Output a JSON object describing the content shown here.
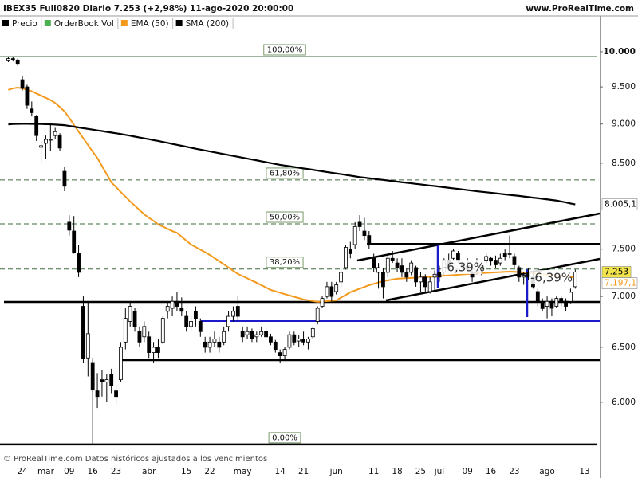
{
  "header": "IBEX35 Full0820 Diario 7.253 (+2,98%) 11-ago-2020 20:00:00",
  "source": "www.ProRealTime.com",
  "footer": "© ProRealTime.com  Datos históricos ajustados a los vencimientos",
  "annotations": [
    "-6,39%",
    "-6,39%"
  ],
  "chart_data": {
    "type": "candlestick",
    "log_scale": true,
    "price_name": "Precio",
    "price_color": "#000000",
    "volume_name": "OrderBook Vol",
    "volume_color": "#4caf50",
    "last_label": "7.253",
    "last_label_color": "#f2e44c",
    "ylim": [
      5563,
      10560
    ],
    "yticks": [
      {
        "value": 10000,
        "label": "10.000"
      },
      {
        "value": 9500,
        "label": "9.500"
      },
      {
        "value": 9000,
        "label": "9.000"
      },
      {
        "value": 8500,
        "label": "8.500"
      },
      {
        "value": 7500,
        "label": "7.500"
      },
      {
        "value": 7000,
        "label": "7.000"
      },
      {
        "value": 6500,
        "label": "6.500"
      },
      {
        "value": 6000,
        "label": "6.000"
      }
    ],
    "categories": [
      null,
      null,
      null,
      "24",
      null,
      null,
      null,
      null,
      "mar",
      null,
      null,
      null,
      null,
      "09",
      null,
      null,
      null,
      null,
      "16",
      null,
      null,
      null,
      null,
      "23",
      null,
      null,
      null,
      null,
      null,
      null,
      "abr",
      null,
      null,
      null,
      null,
      null,
      null,
      null,
      "15",
      null,
      null,
      null,
      null,
      "22",
      null,
      null,
      null,
      null,
      null,
      null,
      "may",
      null,
      null,
      null,
      null,
      null,
      null,
      null,
      "14",
      null,
      null,
      null,
      null,
      "21",
      null,
      null,
      null,
      null,
      null,
      null,
      "jun",
      null,
      null,
      null,
      null,
      null,
      null,
      null,
      "11",
      null,
      null,
      null,
      null,
      "18",
      null,
      null,
      null,
      null,
      "25",
      null,
      null,
      null,
      "jul",
      null,
      null,
      null,
      null,
      null,
      "09",
      null,
      null,
      null,
      null,
      "16",
      null,
      null,
      null,
      null,
      "23",
      null,
      null,
      null,
      null,
      null,
      null,
      "ago",
      null,
      null,
      null,
      null,
      null,
      null,
      null,
      "13"
    ],
    "open": [
      9880,
      9900,
      9880,
      9600,
      9500,
      9200,
      9100,
      8700,
      8750,
      8800,
      8850,
      8850,
      8400,
      7800,
      7700,
      7450,
      6900,
      6400,
      6350,
      6100,
      6200,
      6180,
      6250,
      6100,
      6200,
      6550,
      6750,
      6850,
      6650,
      6600,
      6600,
      6450,
      6500,
      6550,
      6850,
      6880,
      6950,
      6880,
      6800,
      6700,
      6850,
      6750,
      6550,
      6500,
      6550,
      6550,
      6550,
      6700,
      6800,
      6900,
      6650,
      6620,
      6650,
      6600,
      6620,
      6650,
      6600,
      6550,
      6450,
      6420,
      6500,
      6620,
      6560,
      6580,
      6550,
      6600,
      6750,
      6900,
      7000,
      7100,
      7050,
      7150,
      7300,
      7500,
      7550,
      7800,
      7700,
      7650,
      7400,
      7250,
      7250,
      7250,
      7400,
      7350,
      7320,
      7250,
      7250,
      7300,
      7150,
      7200,
      7050,
      7200,
      7250,
      7250,
      7380,
      7400,
      7450,
      7350,
      7320,
      7250,
      7250,
      7300,
      7380,
      7400,
      7380,
      7350,
      7450,
      7450,
      7420,
      7300,
      7200,
      7250,
      7200,
      7050,
      6950,
      6900,
      6950,
      6900,
      6980,
      6950,
      6950,
      7100,
      null,
      null
    ],
    "high": [
      9920,
      9930,
      9900,
      9650,
      9530,
      9300,
      9120,
      8780,
      8850,
      9000,
      8950,
      8880,
      8450,
      7880,
      7870,
      7550,
      7000,
      6950,
      6400,
      6260,
      6290,
      6250,
      6300,
      6150,
      6550,
      6880,
      6950,
      6880,
      6700,
      6750,
      6650,
      6550,
      6580,
      6800,
      6950,
      7000,
      7050,
      6990,
      6850,
      6800,
      6900,
      6780,
      6600,
      6600,
      6650,
      6600,
      6700,
      6850,
      6900,
      7000,
      6700,
      6700,
      6680,
      6650,
      6700,
      6700,
      6630,
      6570,
      6480,
      6500,
      6650,
      6650,
      6620,
      6650,
      6600,
      6700,
      6900,
      7000,
      7150,
      7150,
      7150,
      7300,
      7550,
      7580,
      7800,
      7880,
      7850,
      7700,
      7450,
      7350,
      7300,
      7450,
      7480,
      7400,
      7400,
      7300,
      7380,
      7320,
      7250,
      7230,
      7200,
      7270,
      7320,
      7400,
      7450,
      7500,
      7480,
      7380,
      7400,
      7300,
      7400,
      7350,
      7450,
      7420,
      7430,
      7450,
      7500,
      7650,
      7450,
      7320,
      7250,
      7300,
      7250,
      7080,
      6980,
      7000,
      6980,
      7000,
      7000,
      6980,
      7080,
      7280,
      null,
      null
    ],
    "low": [
      9850,
      9860,
      9800,
      9450,
      9200,
      9100,
      8780,
      8500,
      8550,
      8650,
      8800,
      8650,
      8160,
      7650,
      7450,
      7200,
      6350,
      6230,
      5640,
      5950,
      6050,
      6000,
      6080,
      5980,
      6180,
      6480,
      6700,
      6650,
      6500,
      6550,
      6400,
      6350,
      6400,
      6530,
      6780,
      6800,
      6850,
      6800,
      6650,
      6650,
      6700,
      6600,
      6450,
      6450,
      6500,
      6450,
      6520,
      6650,
      6750,
      6750,
      6550,
      6580,
      6550,
      6550,
      6600,
      6580,
      6520,
      6450,
      6350,
      6380,
      6480,
      6520,
      6500,
      6520,
      6480,
      6580,
      6720,
      6880,
      6980,
      6950,
      7020,
      7100,
      7280,
      7400,
      7500,
      7700,
      7600,
      7500,
      7250,
      7080,
      6980,
      7200,
      7350,
      7250,
      7200,
      7150,
      7220,
      7100,
      7050,
      7050,
      7030,
      7050,
      7150,
      7230,
      7300,
      7380,
      7350,
      7250,
      7250,
      7150,
      7230,
      7220,
      7350,
      7320,
      7300,
      7320,
      7380,
      7400,
      7300,
      7150,
      7120,
      7170,
      7080,
      6900,
      6850,
      6780,
      6800,
      6880,
      6900,
      6850,
      6930,
      7080,
      null,
      null
    ],
    "close": [
      9900,
      9890,
      9830,
      9480,
      9250,
      9150,
      8850,
      8720,
      8800,
      8800,
      8900,
      8690,
      8220,
      7710,
      7460,
      7250,
      6390,
      6630,
      6107,
      6050,
      6180,
      6200,
      6150,
      6050,
      6500,
      6780,
      6900,
      6700,
      6550,
      6700,
      6450,
      6500,
      6450,
      6780,
      6900,
      6950,
      6900,
      6850,
      6700,
      6750,
      6780,
      6650,
      6500,
      6550,
      6580,
      6500,
      6650,
      6800,
      6850,
      6800,
      6600,
      6650,
      6580,
      6620,
      6650,
      6600,
      6550,
      6480,
      6420,
      6480,
      6620,
      6550,
      6580,
      6550,
      6580,
      6680,
      6880,
      6980,
      7100,
      7000,
      7120,
      7250,
      7520,
      7450,
      7750,
      7750,
      7650,
      7550,
      7300,
      7300,
      7100,
      7400,
      7380,
      7300,
      7250,
      7200,
      7350,
      7150,
      7200,
      7100,
      7150,
      7230,
      7200,
      7380,
      7320,
      7480,
      7380,
      7300,
      7280,
      7200,
      7350,
      7320,
      7420,
      7370,
      7330,
      7400,
      7420,
      7450,
      7330,
      7200,
      7220,
      7200,
      7100,
      6950,
      6877,
      6950,
      6880,
      6980,
      6950,
      6900,
      7043,
      7253,
      null,
      null
    ],
    "series": [
      {
        "name": "EMA (50)",
        "color": "#f39a1e",
        "last_label": "7.197,1",
        "values": [
          9460,
          9480,
          9490,
          9480,
          9460,
          9440,
          9410,
          9380,
          9350,
          9320,
          9280,
          9225,
          9166,
          9080,
          8990,
          8900,
          8815,
          8730,
          8645,
          8565,
          8465,
          8365,
          8265,
          8210,
          8150,
          8095,
          8040,
          7990,
          7940,
          7890,
          7850,
          7815,
          7775,
          7750,
          7725,
          7700,
          7680,
          7637,
          7593,
          7550,
          7522,
          7494,
          7466,
          7437,
          7403,
          7369,
          7335,
          7301,
          7267,
          7233,
          7210,
          7187,
          7164,
          7141,
          7116,
          7092,
          7067,
          7053,
          7038,
          7024,
          7010,
          6997,
          6983,
          6970,
          6962,
          6953,
          6945,
          6949,
          6952,
          6956,
          6960,
          6988,
          7015,
          7043,
          7061,
          7080,
          7098,
          7116,
          7130,
          7144,
          7158,
          7166,
          7175,
          7183,
          7186,
          7189,
          7191,
          7194,
          7197,
          7200,
          7203,
          7207,
          7211,
          7214,
          7218,
          7221,
          7225,
          7229,
          7232,
          7236,
          7240,
          7242,
          7245,
          7247,
          7250,
          7252,
          7255,
          7257,
          7255,
          7252,
          7249,
          7245,
          7240,
          7235,
          7230,
          7224,
          7219,
          7214,
          7209,
          7204,
          7200,
          7197.1,
          null,
          null
        ]
      },
      {
        "name": "SMA (200)",
        "color": "#000000",
        "last_label": "8.005,1",
        "values": [
          8995,
          9000,
          9002,
          9003,
          9003,
          9002,
          9001,
          9000,
          8998,
          8996,
          8993,
          8989,
          8985,
          8975,
          8965,
          8955,
          8946,
          8936,
          8927,
          8917,
          8908,
          8898,
          8889,
          8879,
          8870,
          8859,
          8848,
          8836,
          8825,
          8814,
          8803,
          8791,
          8780,
          8768,
          8756,
          8743,
          8731,
          8719,
          8707,
          8694,
          8682,
          8670,
          8659,
          8648,
          8636,
          8625,
          8614,
          8603,
          8591,
          8580,
          8569,
          8558,
          8547,
          8536,
          8524,
          8513,
          8502,
          8491,
          8480,
          8471,
          8463,
          8454,
          8445,
          8436,
          8428,
          8419,
          8410,
          8401,
          8392,
          8383,
          8374,
          8366,
          8357,
          8348,
          8339,
          8330,
          8323,
          8316,
          8309,
          8302,
          8296,
          8289,
          8282,
          8275,
          8268,
          8262,
          8255,
          8248,
          8242,
          8235,
          8228,
          8222,
          8215,
          8208,
          8201,
          8194,
          8188,
          8181,
          8174,
          8167,
          8160,
          8154,
          8148,
          8142,
          8136,
          8129,
          8123,
          8117,
          8111,
          8105,
          8098,
          8091,
          8084,
          8078,
          8071,
          8064,
          8057,
          8050,
          8039,
          8028,
          8016,
          8005.1,
          null,
          null
        ]
      }
    ],
    "fib_levels": [
      {
        "label": "100,00%",
        "value": 9930
      },
      {
        "label": "61,80%",
        "value": 8295
      },
      {
        "label": "50,00%",
        "value": 7781
      },
      {
        "label": "38,20%",
        "value": 7285
      },
      {
        "label": "0,00%",
        "value": 5642
      }
    ]
  }
}
